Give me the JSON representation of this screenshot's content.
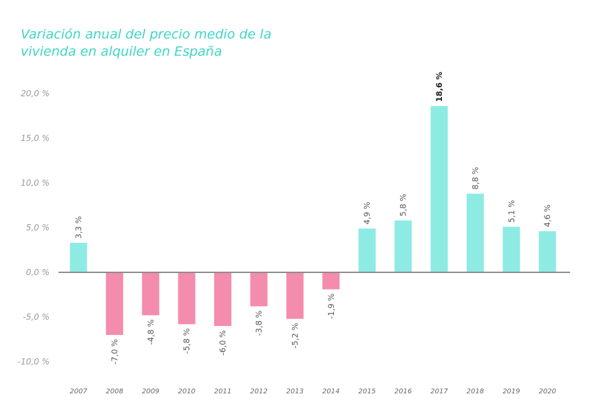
{
  "chart_data": {
    "type": "bar",
    "title": "Variación anual del precio medio de la vivienda en alquiler en España",
    "title_lines": [
      "Variación anual del precio medio de la",
      "vivienda en alquiler en España"
    ],
    "xlabel": "",
    "ylabel": "",
    "categories": [
      "2007",
      "2008",
      "2009",
      "2010",
      "2011",
      "2012",
      "2013",
      "2014",
      "2015",
      "2016",
      "2017",
      "2018",
      "2019",
      "2020"
    ],
    "values": [
      3.3,
      -7.0,
      -4.8,
      -5.8,
      -6.0,
      -3.8,
      -5.2,
      -1.9,
      4.9,
      5.8,
      18.6,
      8.8,
      5.1,
      4.6
    ],
    "data_labels": [
      "3,3 %",
      "-7,0 %",
      "-4,8 %",
      "-5,8 %",
      "-6,0 %",
      "-3,8 %",
      "-5,2 %",
      "-1,9 %",
      "4,9 %",
      "5,8 %",
      "18,6 %",
      "8,8 %",
      "5,1 %",
      "4,6 %"
    ],
    "highlight_index": 10,
    "ylim": [
      -10,
      20
    ],
    "yticks": [
      20,
      15,
      10,
      5,
      0,
      -5,
      -10
    ],
    "ytick_labels": [
      "20,0 %",
      "15,0 %",
      "10,0 %",
      "5,0 %",
      "0,0 %",
      "-5,0 %",
      "-10,0 %"
    ],
    "grid": false,
    "legend": "none",
    "colors": {
      "positive": "#8eebe4",
      "negative": "#f48cad",
      "axis": "#8c8c8c",
      "title": "#3dd6c6"
    }
  }
}
